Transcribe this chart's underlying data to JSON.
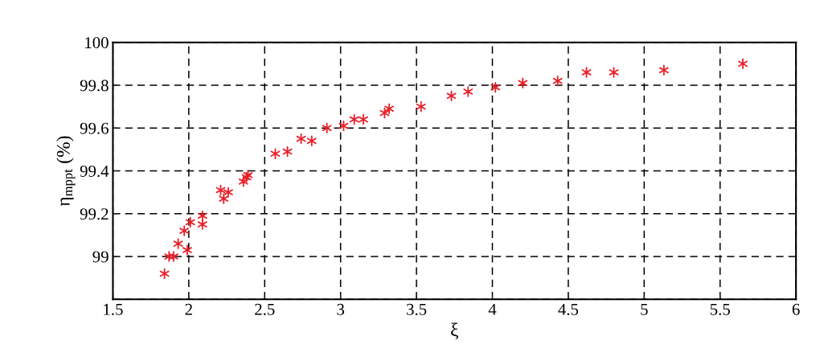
{
  "chart_data": {
    "type": "scatter",
    "xlabel": "ξ",
    "ylabel": "η$_{mppt}$ (%)",
    "x": [
      1.84,
      1.87,
      1.9,
      1.93,
      1.97,
      1.99,
      2.01,
      2.09,
      2.09,
      2.21,
      2.23,
      2.26,
      2.36,
      2.38,
      2.39,
      2.57,
      2.65,
      2.74,
      2.81,
      2.91,
      3.02,
      3.09,
      3.15,
      3.29,
      3.32,
      3.53,
      3.73,
      3.84,
      4.02,
      4.2,
      4.43,
      4.62,
      4.8,
      5.13,
      5.65
    ],
    "series": [
      {
        "color": "#e8202a",
        "values": [
          98.92,
          99.0,
          99.0,
          99.06,
          99.12,
          99.03,
          99.16,
          99.15,
          99.19,
          99.31,
          99.27,
          99.3,
          99.35,
          99.37,
          99.38,
          99.48,
          99.49,
          99.55,
          99.54,
          99.6,
          99.61,
          99.64,
          99.64,
          99.67,
          99.69,
          99.7,
          99.75,
          99.77,
          99.79,
          99.81,
          99.82,
          99.86,
          99.86,
          99.87,
          99.9
        ]
      }
    ],
    "xlim": [
      1.5,
      6
    ],
    "xticks": [
      1.5,
      2,
      2.5,
      3,
      3.5,
      4,
      4.5,
      5,
      5.5,
      6
    ],
    "ylim": [
      98.8,
      100
    ],
    "yticks": [
      {
        "value": 98.8,
        "label": null
      },
      99,
      99.2,
      99.4,
      99.6,
      99.8,
      100
    ],
    "grid": true,
    "marker": "cross",
    "legend": false
  }
}
